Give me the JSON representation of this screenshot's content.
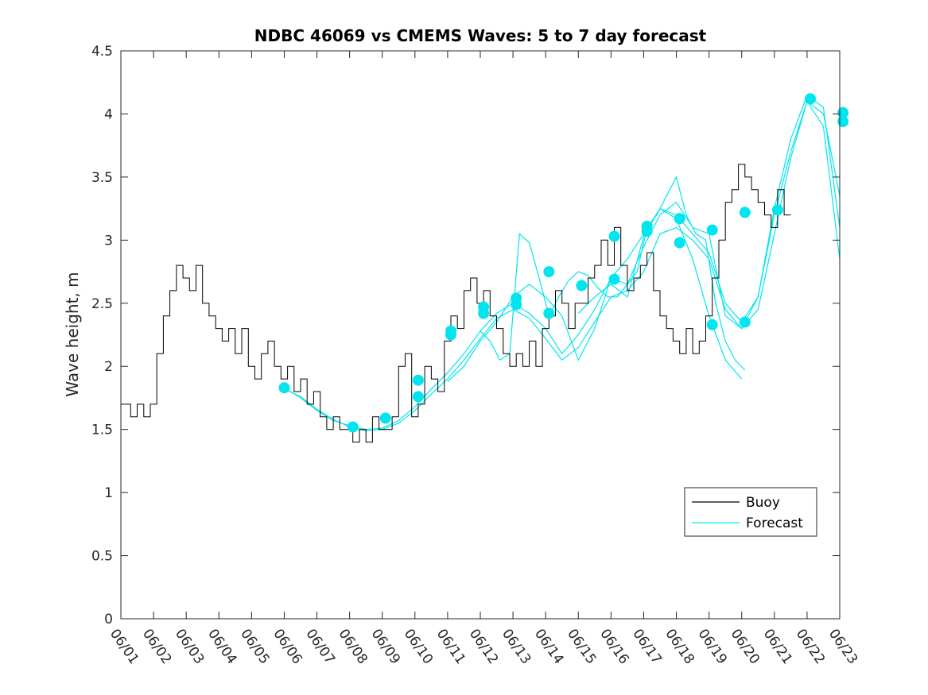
{
  "chart_data": {
    "type": "line",
    "title": "NDBC 46069 vs CMEMS Waves: 5 to 7 day forecast",
    "xlabel": "",
    "ylabel": "Wave height, m",
    "x_ticks": [
      "06/01",
      "06/02",
      "06/03",
      "06/04",
      "06/05",
      "06/06",
      "06/07",
      "06/08",
      "06/09",
      "06/10",
      "06/11",
      "06/12",
      "06/13",
      "06/14",
      "06/15",
      "06/16",
      "06/17",
      "06/18",
      "06/19",
      "06/20",
      "06/21",
      "06/22",
      "06/23"
    ],
    "y_ticks": [
      "0",
      "0.5",
      "1",
      "1.5",
      "2",
      "2.5",
      "3",
      "3.5",
      "4",
      "4.5"
    ],
    "ylim": [
      0,
      4.5
    ],
    "xlim_days": [
      0,
      22
    ],
    "grid": false,
    "legend": {
      "position": "bottom-right",
      "entries": [
        "Buoy",
        "Forecast"
      ]
    },
    "colors": {
      "buoy": "#000000",
      "forecast": "#00e5ee"
    },
    "series": [
      {
        "name": "Buoy",
        "day": [
          0,
          0.2,
          0.4,
          0.6,
          0.8,
          1.0,
          1.2,
          1.4,
          1.6,
          1.8,
          2.0,
          2.2,
          2.4,
          2.6,
          2.8,
          3.0,
          3.2,
          3.4,
          3.6,
          3.8,
          4.0,
          4.2,
          4.4,
          4.6,
          4.8,
          5.0,
          5.2,
          5.4,
          5.6,
          5.8,
          6.0,
          6.2,
          6.4,
          6.6,
          6.8,
          7.0,
          7.2,
          7.4,
          7.6,
          7.8,
          8.0,
          8.2,
          8.4,
          8.6,
          8.8,
          9.0,
          9.2,
          9.4,
          9.6,
          9.8,
          10.0,
          10.2,
          10.4,
          10.6,
          10.8,
          11.0,
          11.2,
          11.4,
          11.6,
          11.8,
          12.0,
          12.2,
          12.4,
          12.6,
          12.8,
          13.0,
          13.2,
          13.4,
          13.6,
          13.8,
          14.0,
          14.2,
          14.4,
          14.6,
          14.8,
          15.0,
          15.2,
          15.4,
          15.6,
          15.8,
          16.0,
          16.2,
          16.4,
          16.6,
          16.8,
          17.0,
          17.2,
          17.4,
          17.6,
          17.8,
          18.0,
          18.2,
          18.4,
          18.6,
          18.8,
          19.0,
          19.2,
          19.4,
          19.6,
          19.8,
          20.0,
          20.2,
          20.4,
          20.6,
          20.8,
          21.0,
          21.2
        ],
        "values": [
          1.7,
          1.7,
          1.6,
          1.7,
          1.6,
          1.7,
          2.1,
          2.4,
          2.6,
          2.8,
          2.7,
          2.6,
          2.8,
          2.5,
          2.4,
          2.3,
          2.2,
          2.3,
          2.1,
          2.3,
          2.0,
          1.9,
          2.1,
          2.2,
          2.0,
          1.9,
          2.0,
          1.8,
          1.9,
          1.7,
          1.8,
          1.6,
          1.5,
          1.6,
          1.5,
          1.5,
          1.4,
          1.5,
          1.4,
          1.6,
          1.5,
          1.5,
          1.6,
          2.0,
          2.1,
          1.6,
          1.7,
          2.0,
          1.9,
          1.8,
          2.2,
          2.4,
          2.3,
          2.6,
          2.7,
          2.5,
          2.6,
          2.4,
          2.3,
          2.1,
          2.0,
          2.1,
          2.0,
          2.2,
          2.0,
          2.3,
          2.4,
          2.6,
          2.5,
          2.3,
          2.5,
          2.5,
          2.7,
          2.8,
          3.0,
          2.8,
          3.1,
          2.8,
          2.6,
          2.7,
          2.8,
          2.9,
          2.6,
          2.4,
          2.3,
          2.2,
          2.1,
          2.3,
          2.1,
          2.2,
          2.4,
          2.7,
          3.0,
          3.3,
          3.4,
          3.6,
          3.5,
          3.4,
          3.3,
          3.2,
          3.1,
          3.4,
          3.2
        ]
      },
      {
        "name": "Forecast",
        "runs": [
          {
            "day": [
              5.0,
              5.5,
              6.0,
              6.5,
              7.0,
              7.5,
              8.0,
              8.5,
              9.0,
              9.5,
              10.0,
              10.5,
              11.0,
              11.5,
              12.0,
              12.5,
              13.0,
              13.5,
              14.0,
              14.5,
              15.0,
              15.5,
              16.0,
              16.5,
              17.0,
              17.5,
              18.0,
              18.5,
              19.0,
              19.5,
              20.0,
              20.5,
              21.0,
              21.5,
              22.0
            ],
            "values": [
              1.82,
              1.76,
              1.66,
              1.58,
              1.52,
              1.49,
              1.5,
              1.55,
              1.65,
              1.78,
              1.9,
              2.05,
              2.22,
              2.38,
              2.45,
              2.38,
              2.22,
              2.05,
              2.15,
              2.35,
              2.55,
              2.6,
              2.75,
              3.05,
              3.1,
              3.0,
              2.85,
              2.45,
              2.3,
              2.45,
              3.05,
              3.65,
              4.1,
              3.9,
              2.85
            ]
          },
          {
            "day": [
              5.0,
              5.5,
              6.0,
              6.5,
              7.0,
              7.5,
              8.0,
              8.5,
              9.0,
              9.5,
              10.0,
              10.5,
              11.0,
              11.5,
              12.0,
              12.5,
              13.0,
              13.5,
              14.0,
              14.5,
              15.0,
              15.5,
              16.0,
              16.5,
              17.0,
              17.5,
              18.0,
              18.5,
              19.0,
              19.5,
              20.0,
              20.5,
              21.0,
              21.5,
              22.0
            ],
            "values": [
              1.83,
              1.75,
              1.65,
              1.57,
              1.53,
              1.5,
              1.51,
              1.57,
              1.68,
              1.82,
              1.95,
              2.1,
              2.28,
              2.42,
              2.5,
              2.42,
              2.3,
              2.1,
              2.25,
              2.45,
              2.7,
              2.85,
              3.05,
              3.25,
              3.2,
              3.05,
              2.9,
              2.5,
              2.35,
              2.55,
              3.25,
              3.8,
              4.15,
              4.05,
              3.1
            ]
          },
          {
            "day": [
              10.0,
              10.5,
              11.0,
              11.5,
              12.0,
              12.5,
              13.0,
              13.5,
              14.0,
              14.5,
              15.0,
              15.5,
              16.0,
              16.5,
              17.0,
              17.5,
              18.0,
              18.5,
              19.0,
              19.5,
              20.0,
              20.5,
              21.0,
              21.5,
              22.0
            ],
            "values": [
              1.88,
              2.0,
              2.2,
              2.35,
              2.55,
              2.65,
              2.55,
              2.4,
              2.05,
              2.3,
              2.7,
              2.65,
              2.95,
              3.2,
              3.3,
              3.1,
              3.05,
              2.4,
              2.3,
              2.55,
              3.2,
              3.7,
              4.1,
              4.0,
              3.35
            ]
          },
          {
            "day": [
              11.0,
              11.3,
              11.6,
              11.9,
              12.2,
              12.5,
              12.8,
              13.1,
              13.4,
              13.7,
              14.0,
              14.3,
              14.6,
              14.9,
              15.2,
              15.5,
              15.8,
              16.1,
              16.4,
              16.7,
              17.0,
              17.3,
              17.6,
              17.9,
              18.2,
              18.5,
              18.8,
              19.1
            ],
            "values": [
              2.28,
              2.2,
              2.05,
              2.1,
              3.05,
              2.98,
              2.7,
              2.4,
              2.55,
              2.68,
              2.75,
              2.72,
              2.62,
              2.55,
              2.55,
              2.65,
              2.75,
              3.1,
              3.2,
              3.35,
              3.5,
              3.2,
              3.05,
              3.0,
              2.5,
              2.2,
              2.05,
              1.97
            ]
          },
          {
            "day": [
              14.0,
              14.5,
              15.0,
              15.5,
              16.0,
              16.5,
              17.0,
              17.5,
              18.0,
              18.5,
              19.0
            ],
            "values": [
              2.42,
              2.55,
              2.65,
              2.55,
              3.03,
              3.25,
              3.17,
              2.85,
              2.4,
              2.05,
              1.9
            ]
          }
        ]
      }
    ],
    "markers": {
      "day": [
        5.0,
        7.1,
        8.1,
        9.1,
        9.1,
        10.1,
        10.1,
        11.1,
        11.1,
        12.1,
        12.1,
        13.1,
        13.1,
        14.1,
        15.1,
        15.1,
        16.1,
        16.1,
        17.1,
        17.1,
        18.1,
        18.1,
        19.1,
        19.1,
        20.1,
        21.1,
        22.1,
        22.1
      ],
      "values": [
        1.83,
        1.52,
        1.59,
        1.76,
        1.89,
        2.25,
        2.28,
        2.42,
        2.47,
        2.49,
        2.54,
        2.42,
        2.75,
        2.64,
        2.69,
        3.03,
        3.11,
        3.07,
        3.17,
        2.98,
        3.08,
        2.33,
        2.35,
        3.22,
        3.24,
        4.12,
        3.94,
        4.01
      ]
    }
  }
}
